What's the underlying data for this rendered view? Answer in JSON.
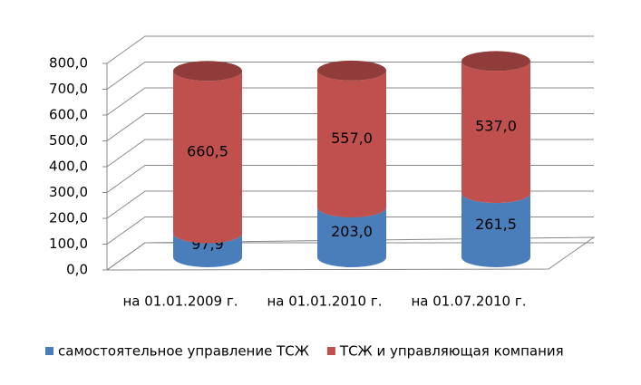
{
  "chart_data": {
    "type": "bar3d-stacked",
    "categories": [
      "на 01.01.2009 г.",
      "на 01.01.2010 г.",
      "на 01.07.2010 г."
    ],
    "series": [
      {
        "name": "самостоятельное управление ТСЖ",
        "color": "#4a7ebb",
        "values": [
          97.9,
          203.0,
          261.5
        ],
        "value_labels": [
          "97,9",
          "203,0",
          "261,5"
        ]
      },
      {
        "name": "ТСЖ и управляющая компания",
        "color": "#c0504d",
        "values": [
          660.5,
          557.0,
          537.0
        ],
        "value_labels": [
          "660,5",
          "557,0",
          "537,0"
        ]
      }
    ],
    "ylim": [
      0,
      800
    ],
    "yticks": [
      {
        "value": 0,
        "label": "0,0"
      },
      {
        "value": 100,
        "label": "100,0"
      },
      {
        "value": 200,
        "label": "200,0"
      },
      {
        "value": 300,
        "label": "300,0"
      },
      {
        "value": 400,
        "label": "400,0"
      },
      {
        "value": 500,
        "label": "500,0"
      },
      {
        "value": 600,
        "label": "600,0"
      },
      {
        "value": 700,
        "label": "700,0"
      },
      {
        "value": 800,
        "label": "800,0"
      }
    ],
    "grid": true,
    "legend": "bottom"
  }
}
